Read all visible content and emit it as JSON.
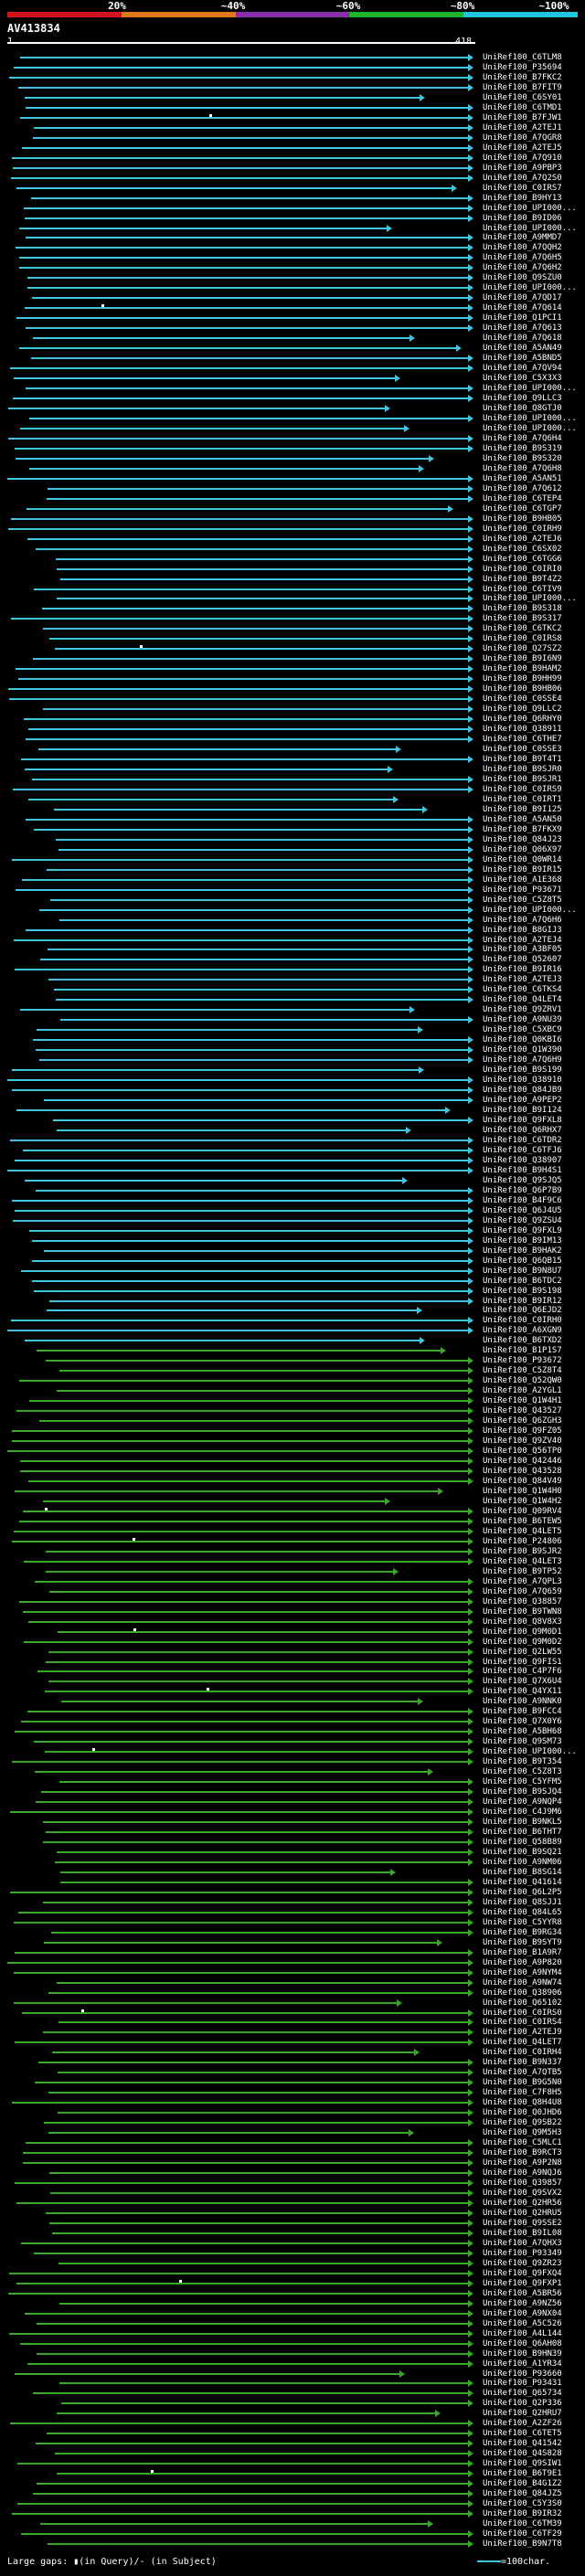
{
  "scale": {
    "labels": [
      "20%",
      "~40%",
      "~60%",
      "~80%",
      "~100%"
    ],
    "colors": [
      "#d4141c",
      "#e0781a",
      "#8a2da8",
      "#1db32b",
      "#1ec6dc"
    ]
  },
  "query": {
    "id": "AV413834",
    "start": "1",
    "end": "418"
  },
  "colors": {
    "cyan": "#3fc6de",
    "green": "#3aa62c",
    "white": "#ffffff"
  },
  "hits": [
    "UniRef100_C6TLM8",
    "UniRef100_P35694",
    "UniRef100_B7FKC2",
    "UniRef100_B7FIT9",
    "UniRef100_C6SY01",
    "UniRef100_C6TMD1",
    "UniRef100_B7FJW1",
    "UniRef100_A2TEJ1",
    "UniRef100_A7QGR8",
    "UniRef100_A2TEJ5",
    "UniRef100_A7Q910",
    "UniRef100_A9PBP3",
    "UniRef100_A7Q2S0",
    "UniRef100_C0IRS7",
    "UniRef100_B9HY13",
    "UniRef100_UPI000...",
    "UniRef100_B9ID06",
    "UniRef100_UPI000...",
    "UniRef100_A9MMD7",
    "UniRef100_A7QQH2",
    "UniRef100_A7Q6H5",
    "UniRef100_A7Q6H2",
    "UniRef100_Q9SZU0",
    "UniRef100_UPI000...",
    "UniRef100_A7QD17",
    "UniRef100_A7Q614",
    "UniRef100_Q1PCI1",
    "UniRef100_A7Q613",
    "UniRef100_A7Q618",
    "UniRef100_A5AN49",
    "UniRef100_A5BND5",
    "UniRef100_A7QV94",
    "UniRef100_C5X3X3",
    "UniRef100_UPI000...",
    "UniRef100_Q9LLC3",
    "UniRef100_Q8GTJ0",
    "UniRef100_UPI000...",
    "UniRef100_UPI000...",
    "UniRef100_A7Q6H4",
    "UniRef100_B9S319",
    "UniRef100_B9S320",
    "UniRef100_A7Q6H8",
    "UniRef100_A5AN51",
    "UniRef100_A7Q612",
    "UniRef100_C6TEP4",
    "UniRef100_C6TGP7",
    "UniRef100_B9HB05",
    "UniRef100_C0IRH9",
    "UniRef100_A2TEJ6",
    "UniRef100_C6SX02",
    "UniRef100_C6TGG6",
    "UniRef100_C0IRI0",
    "UniRef100_B9T4Z2",
    "UniRef100_C6TIV9",
    "UniRef100_UPI000...",
    "UniRef100_B9S318",
    "UniRef100_B9S317",
    "UniRef100_C6TKC2",
    "UniRef100_C0IRS8",
    "UniRef100_Q27SZ2",
    "UniRef100_B9I6N9",
    "UniRef100_B9HAM2",
    "UniRef100_B9HH99",
    "UniRef100_B9HB06",
    "UniRef100_C0SSE4",
    "UniRef100_Q9LLC2",
    "UniRef100_Q6RHY0",
    "UniRef100_Q38911",
    "UniRef100_C6THE7",
    "UniRef100_C0SSE3",
    "UniRef100_B9T4T1",
    "UniRef100_B9SJR0",
    "UniRef100_B9SJR1",
    "UniRef100_C0IRS9",
    "UniRef100_C0IRT1",
    "UniRef100_B9I125",
    "UniRef100_A5AN50",
    "UniRef100_B7FKX9",
    "UniRef100_Q84J23",
    "UniRef100_Q06X97",
    "UniRef100_Q0WR14",
    "UniRef100_B9IR15",
    "UniRef100_A1E368",
    "UniRef100_P93671",
    "UniRef100_C5Z8T5",
    "UniRef100_UPI000...",
    "UniRef100_A7Q6H6",
    "UniRef100_B8GIJ3",
    "UniRef100_A2TEJ4",
    "UniRef100_A3BF05",
    "UniRef100_Q52607",
    "UniRef100_B9IR16",
    "UniRef100_A2TEJ3",
    "UniRef100_C6TKS4",
    "UniRef100_Q4LET4",
    "UniRef100_Q9ZRV1",
    "UniRef100_A9NU39",
    "UniRef100_C5XBC9",
    "UniRef100_Q0KBI6",
    "UniRef100_Q1W390",
    "UniRef100_A7Q6H9",
    "UniRef100_B9S199",
    "UniRef100_Q38910",
    "UniRef100_Q84JB9",
    "UniRef100_A9PEP2",
    "UniRef100_B9I124",
    "UniRef100_Q9FXL8",
    "UniRef100_Q6RHX7",
    "UniRef100_C6TDR2",
    "UniRef100_C6TFJ6",
    "UniRef100_Q38907",
    "UniRef100_B9H4S1",
    "UniRef100_Q9SJQ5",
    "UniRef100_Q6P7B9",
    "UniRef100_B4F9C6",
    "UniRef100_Q6J4U5",
    "UniRef100_Q9ZSU4",
    "UniRef100_Q9FXL9",
    "UniRef100_B9IM13",
    "UniRef100_B9HAK2",
    "UniRef100_Q6QB15",
    "UniRef100_B9N8U7",
    "UniRef100_B6TDC2",
    "UniRef100_B9S198",
    "UniRef100_B9IR12",
    "UniRef100_Q6EJD2",
    "UniRef100_C0IRH0",
    "UniRef100_A6XGN9",
    "UniRef100_B6TXD2",
    "UniRef100_B1P1S7",
    "UniRef100_P93672",
    "UniRef100_C5Z8T4",
    "UniRef100_Q52QW0",
    "UniRef100_A2YGL1",
    "UniRef100_Q1W4H1",
    "UniRef100_Q43527",
    "UniRef100_Q6ZGH3",
    "UniRef100_Q9FZ05",
    "UniRef100_Q9ZV40",
    "UniRef100_Q56TP0",
    "UniRef100_Q42446",
    "UniRef100_Q43528",
    "UniRef100_Q84V49",
    "UniRef100_Q1W4H0",
    "UniRef100_Q1W4H2",
    "UniRef100_Q09RV4",
    "UniRef100_B6TEW5",
    "UniRef100_Q4LET5",
    "UniRef100_P24806",
    "UniRef100_B9SJR2",
    "UniRef100_Q4LET3",
    "UniRef100_B9TP52",
    "UniRef100_A7QPL3",
    "UniRef100_A7Q659",
    "UniRef100_Q38857",
    "UniRef100_B9TWN8",
    "UniRef100_Q8V8X3",
    "UniRef100_Q9M0D1",
    "UniRef100_Q9M0D2",
    "UniRef100_Q2LW55",
    "UniRef100_Q9FIS1",
    "UniRef100_C4P7F6",
    "UniRef100_Q7X6U4",
    "UniRef100_Q4YX11",
    "UniRef100_A9NNK0",
    "UniRef100_B9FCC4",
    "UniRef100_Q7X0Y6",
    "UniRef100_A5BH68",
    "UniRef100_Q9SM73",
    "UniRef100_UPI000...",
    "UniRef100_B9T354",
    "UniRef100_C5Z8T3",
    "UniRef100_C5YFM5",
    "UniRef100_B9SJQ4",
    "UniRef100_A9NQP4",
    "UniRef100_C4J9M6",
    "UniRef100_B9NKL5",
    "UniRef100_B6THT7",
    "UniRef100_Q58B89",
    "UniRef100_B9SQ21",
    "UniRef100_A9NM06",
    "UniRef100_B8SG14",
    "UniRef100_Q41614",
    "UniRef100_Q6L2P5",
    "UniRef100_Q8SJJ1",
    "UniRef100_Q84L65",
    "UniRef100_C5YYR8",
    "UniRef100_B9RG34",
    "UniRef100_B9SYT9",
    "UniRef100_B1A9R7",
    "UniRef100_A9P820",
    "UniRef100_A9NYM4",
    "UniRef100_A9NW74",
    "UniRef100_Q38906",
    "UniRef100_Q65102",
    "UniRef100_C0IRS0",
    "UniRef100_C0IRS4",
    "UniRef100_A2TEJ9",
    "UniRef100_Q4LET7",
    "UniRef100_C0IRH4",
    "UniRef100_B9N337",
    "UniRef100_A7QTB5",
    "UniRef100_B9G5N0",
    "UniRef100_C7F8H5",
    "UniRef100_Q8H4U8",
    "UniRef100_Q0JHD6",
    "UniRef100_Q9SB22",
    "UniRef100_Q9M5H3",
    "UniRef100_C5MLC1",
    "UniRef100_B9RCT3",
    "UniRef100_A9P2N8",
    "UniRef100_A9NQJ6",
    "UniRef100_Q39857",
    "UniRef100_Q9SVX2",
    "UniRef100_Q2HR56",
    "UniRef100_Q2HRU5",
    "UniRef100_Q9SSE2",
    "UniRef100_B9IL08",
    "UniRef100_A7QHX3",
    "UniRef100_P93349",
    "UniRef100_Q9ZR23",
    "UniRef100_Q9FXQ4",
    "UniRef100_Q9FXP1",
    "UniRef100_A5BR56",
    "UniRef100_A9NZ56",
    "UniRef100_A9NX04",
    "UniRef100_A5C526",
    "UniRef100_A4L144",
    "UniRef100_Q6AH08",
    "UniRef100_B9HN39",
    "UniRef100_A1YR34",
    "UniRef100_P93660",
    "UniRef100_P93431",
    "UniRef100_Q65734",
    "UniRef100_Q2P336",
    "UniRef100_Q2HRU7",
    "UniRef100_A2ZF26",
    "UniRef100_C6TET5",
    "UniRef100_Q41542",
    "UniRef100_Q4S828",
    "UniRef100_Q9SIW1",
    "UniRef100_B6T9E1",
    "UniRef100_B4G1Z2",
    "UniRef100_Q84JZ5",
    "UniRef100_C5Y3S0",
    "UniRef100_B9IR32",
    "UniRef100_C6TM39",
    "UniRef100_C6TF29",
    "UniRef100_B9N7T8"
  ],
  "legend": {
    "left_text": "Large gaps: ",
    "left_marker1": "▮",
    "left_mid": "(in Query)/",
    "left_marker2": "-",
    "left_end": " (in Subject)",
    "right_text": "=100char."
  }
}
